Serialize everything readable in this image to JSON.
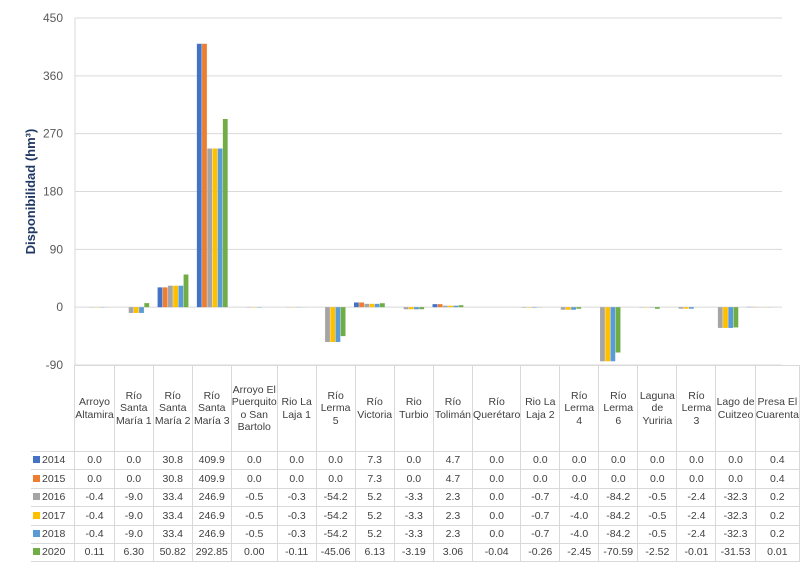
{
  "chart_data": {
    "type": "bar",
    "title": "",
    "xlabel": "",
    "ylabel": "Disponibilidad (hm³)",
    "ylim": [
      -90,
      450
    ],
    "yticks": [
      "450",
      "360",
      "270",
      "180",
      "90",
      "0",
      "-90"
    ],
    "categories": [
      "Arroyo Altamira",
      "Río Santa María 1",
      "Río Santa María 2",
      "Río Santa María 3",
      "Arroyo El Puerquito o San Bartolo",
      "Rio La Laja 1",
      "Río Lerma 5",
      "Río Victoria",
      "Rio Turbio",
      "Río Tolimán",
      "Río Querétaro",
      "Rio La Laja 2",
      "Río Lerma 4",
      "Río Lerma 6",
      "Laguna de Yuriria",
      "Río Lerma 3",
      "Lago de Cuitzeo",
      "Presa El Cuarenta"
    ],
    "series": [
      {
        "name": "2014",
        "color": "#4472C4",
        "values": [
          "0.0",
          "0.0",
          "30.8",
          "409.9",
          "0.0",
          "0.0",
          "0.0",
          "7.3",
          "0.0",
          "4.7",
          "0.0",
          "0.0",
          "0.0",
          "0.0",
          "0.0",
          "0.0",
          "0.0",
          "0.4"
        ]
      },
      {
        "name": "2015",
        "color": "#ED7D31",
        "values": [
          "0.0",
          "0.0",
          "30.8",
          "409.9",
          "0.0",
          "0.0",
          "0.0",
          "7.3",
          "0.0",
          "4.7",
          "0.0",
          "0.0",
          "0.0",
          "0.0",
          "0.0",
          "0.0",
          "0.0",
          "0.4"
        ]
      },
      {
        "name": "2016",
        "color": "#A5A5A5",
        "values": [
          "-0.4",
          "-9.0",
          "33.4",
          "246.9",
          "-0.5",
          "-0.3",
          "-54.2",
          "5.2",
          "-3.3",
          "2.3",
          "0.0",
          "-0.7",
          "-4.0",
          "-84.2",
          "-0.5",
          "-2.4",
          "-32.3",
          "0.2"
        ]
      },
      {
        "name": "2017",
        "color": "#FFC000",
        "values": [
          "-0.4",
          "-9.0",
          "33.4",
          "246.9",
          "-0.5",
          "-0.3",
          "-54.2",
          "5.2",
          "-3.3",
          "2.3",
          "0.0",
          "-0.7",
          "-4.0",
          "-84.2",
          "-0.5",
          "-2.4",
          "-32.3",
          "0.2"
        ]
      },
      {
        "name": "2018",
        "color": "#5B9BD5",
        "values": [
          "-0.4",
          "-9.0",
          "33.4",
          "246.9",
          "-0.5",
          "-0.3",
          "-54.2",
          "5.2",
          "-3.3",
          "2.3",
          "0.0",
          "-0.7",
          "-4.0",
          "-84.2",
          "-0.5",
          "-2.4",
          "-32.3",
          "0.2"
        ]
      },
      {
        "name": "2020",
        "color": "#70AD47",
        "values": [
          "0.11",
          "6.30",
          "50.82",
          "292.85",
          "0.00",
          "-0.11",
          "-45.06",
          "6.13",
          "-3.19",
          "3.06",
          "-0.04",
          "-0.26",
          "-2.45",
          "-70.59",
          "-2.52",
          "-0.01",
          "-31.53",
          "0.01"
        ]
      }
    ],
    "grid": true,
    "legend": "data-table-left"
  }
}
